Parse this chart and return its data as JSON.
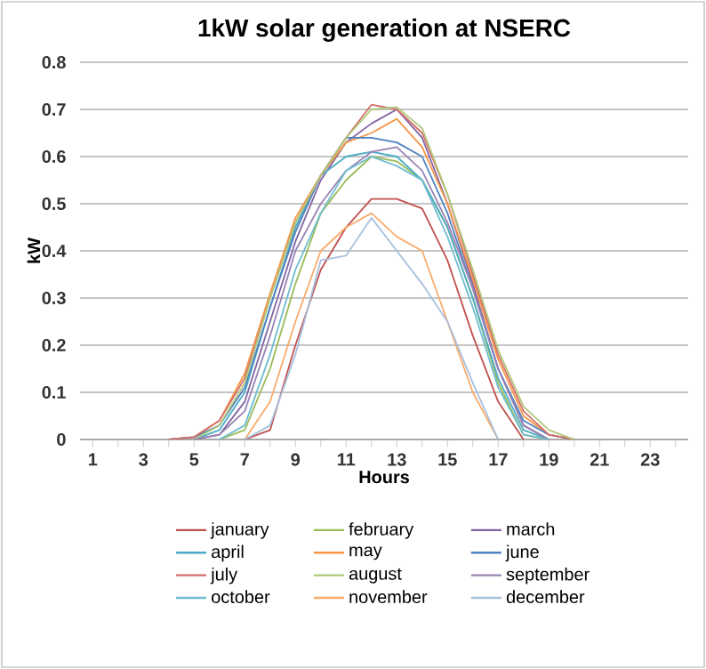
{
  "chart_data": {
    "type": "line",
    "title": "1kW solar generation at NSERC",
    "xlabel": "Hours",
    "ylabel": "kW",
    "categories": [
      "1",
      null,
      "3",
      null,
      "5",
      null,
      "7",
      null,
      "9",
      null,
      "11",
      null,
      "13",
      null,
      "15",
      null,
      "17",
      null,
      "19",
      null,
      "21",
      null,
      "23",
      null
    ],
    "ylim": [
      0,
      0.8
    ],
    "yticks": [
      0,
      0.1,
      0.2,
      0.3,
      0.4,
      0.5,
      0.6,
      0.7,
      0.8
    ],
    "grid": "y",
    "legend": "bottom",
    "marker": "none",
    "line_style": "solid",
    "series": [
      {
        "name": "january",
        "color": "#C0504D",
        "values": [
          null,
          null,
          null,
          null,
          null,
          null,
          0,
          0.02,
          0.2,
          0.36,
          0.45,
          0.51,
          0.51,
          0.49,
          0.38,
          0.22,
          0.08,
          0,
          null,
          null,
          null,
          null,
          null,
          null
        ]
      },
      {
        "name": "february",
        "color": "#9BBB59",
        "values": [
          null,
          null,
          null,
          null,
          null,
          0,
          0.02,
          0.15,
          0.33,
          0.48,
          0.55,
          0.6,
          0.59,
          0.55,
          0.45,
          0.3,
          0.12,
          0.01,
          0,
          null,
          null,
          null,
          null,
          null
        ]
      },
      {
        "name": "march",
        "color": "#8064A2",
        "values": [
          null,
          null,
          null,
          null,
          0,
          0.01,
          0.08,
          0.25,
          0.42,
          0.55,
          0.63,
          0.67,
          0.7,
          0.64,
          0.5,
          0.33,
          0.15,
          0.03,
          0,
          null,
          null,
          null,
          null,
          null
        ]
      },
      {
        "name": "april",
        "color": "#4BACC6",
        "values": [
          null,
          null,
          null,
          null,
          0,
          0.02,
          0.1,
          0.28,
          0.45,
          0.56,
          0.6,
          0.61,
          0.6,
          0.55,
          0.45,
          0.3,
          0.13,
          0.02,
          0,
          null,
          null,
          null,
          null,
          null
        ]
      },
      {
        "name": "may",
        "color": "#F79646",
        "values": [
          null,
          null,
          null,
          0,
          0.005,
          0.04,
          0.14,
          0.31,
          0.47,
          0.56,
          0.63,
          0.65,
          0.68,
          0.62,
          0.5,
          0.34,
          0.17,
          0.05,
          0.01,
          0,
          null,
          null,
          null,
          null
        ]
      },
      {
        "name": "june",
        "color": "#4F81BD",
        "values": [
          null,
          null,
          null,
          0,
          0.005,
          0.03,
          0.11,
          0.28,
          0.44,
          0.56,
          0.64,
          0.64,
          0.63,
          0.6,
          0.48,
          0.32,
          0.15,
          0.04,
          0.01,
          0,
          null,
          null,
          null,
          null
        ]
      },
      {
        "name": "july",
        "color": "#D46F6B",
        "values": [
          null,
          null,
          null,
          0,
          0.005,
          0.04,
          0.13,
          0.3,
          0.46,
          0.56,
          0.64,
          0.71,
          0.7,
          0.65,
          0.52,
          0.35,
          0.18,
          0.06,
          0.01,
          0,
          null,
          null,
          null,
          null
        ]
      },
      {
        "name": "august",
        "color": "#AFC97A",
        "values": [
          null,
          null,
          null,
          null,
          0,
          0.03,
          0.12,
          0.3,
          0.46,
          0.56,
          0.64,
          0.7,
          0.705,
          0.66,
          0.52,
          0.36,
          0.19,
          0.07,
          0.02,
          0,
          null,
          null,
          null,
          null
        ]
      },
      {
        "name": "september",
        "color": "#9983B5",
        "values": [
          null,
          null,
          null,
          null,
          0,
          0.01,
          0.06,
          0.22,
          0.4,
          0.5,
          0.57,
          0.61,
          0.62,
          0.57,
          0.46,
          0.32,
          0.15,
          0.03,
          0,
          null,
          null,
          null,
          null,
          null
        ]
      },
      {
        "name": "october",
        "color": "#6FBDD1",
        "values": [
          null,
          null,
          null,
          null,
          null,
          0,
          0.03,
          0.18,
          0.36,
          0.48,
          0.57,
          0.6,
          0.58,
          0.55,
          0.43,
          0.28,
          0.11,
          0.01,
          0,
          null,
          null,
          null,
          null,
          null
        ]
      },
      {
        "name": "november",
        "color": "#F9AB6B",
        "values": [
          null,
          null,
          null,
          null,
          null,
          null,
          0,
          0.08,
          0.25,
          0.4,
          0.45,
          0.48,
          0.43,
          0.4,
          0.25,
          0.1,
          0,
          null,
          null,
          null,
          null,
          null,
          null,
          null
        ]
      },
      {
        "name": "december",
        "color": "#A7C0DE",
        "values": [
          null,
          null,
          null,
          null,
          null,
          null,
          0,
          0.03,
          0.18,
          0.38,
          0.39,
          0.47,
          0.4,
          0.33,
          0.25,
          0.12,
          0,
          null,
          null,
          null,
          null,
          null,
          null,
          null
        ]
      }
    ]
  }
}
